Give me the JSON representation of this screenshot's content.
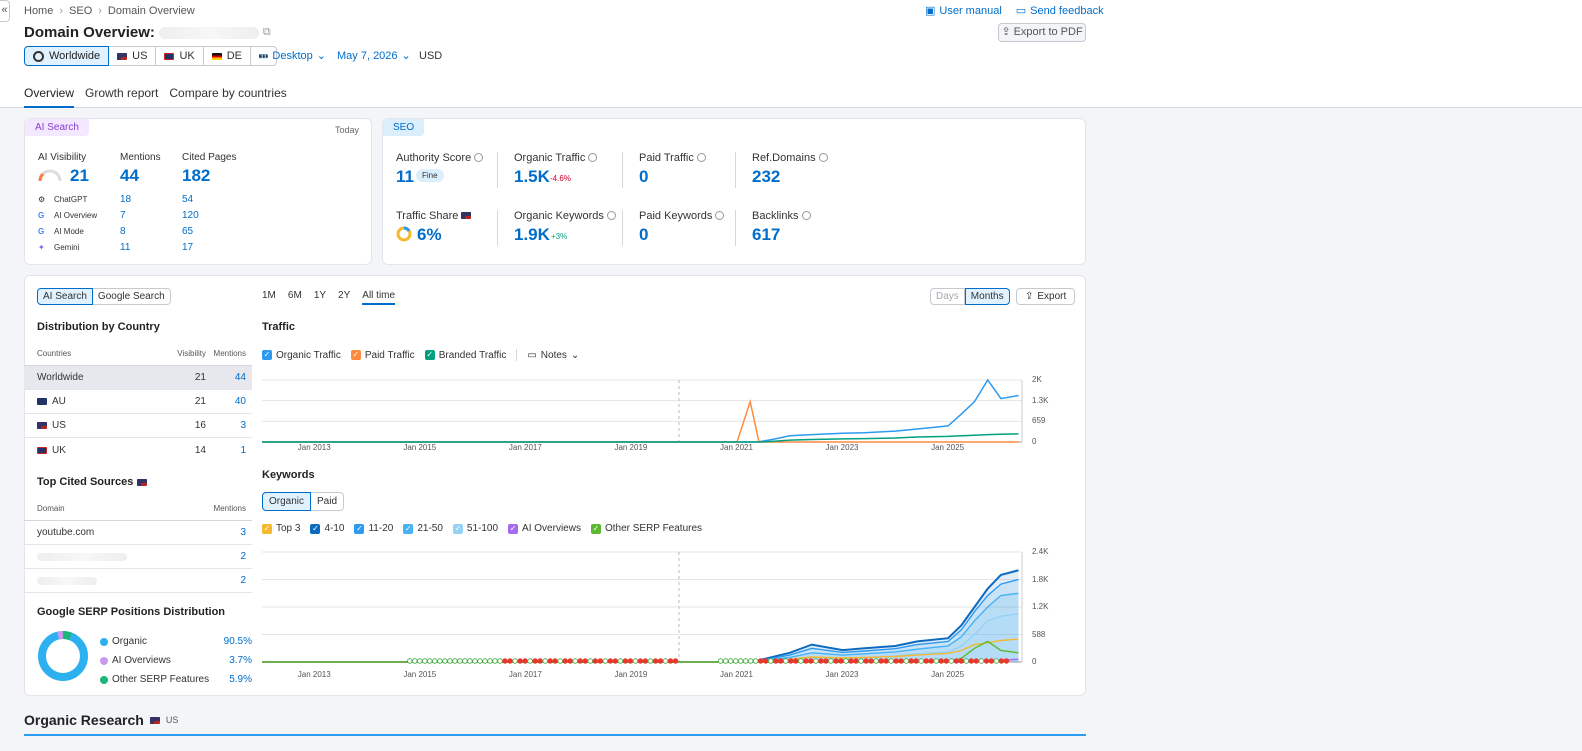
{
  "breadcrumbs": [
    "Home",
    "SEO",
    "Domain Overview"
  ],
  "page_title": "Domain Overview:",
  "top_links": {
    "manual": "User manual",
    "feedback": "Send feedback"
  },
  "export_pdf": "Export to PDF",
  "regions": [
    "Worldwide",
    "US",
    "UK",
    "DE"
  ],
  "more": "•••",
  "device": "Desktop",
  "date": "May 7, 2026",
  "currency": "USD",
  "tabs": [
    "Overview",
    "Growth report",
    "Compare by countries"
  ],
  "ai_card": {
    "badge": "AI Search",
    "when": "Today",
    "headers": [
      "AI Visibility",
      "Mentions",
      "Cited Pages"
    ],
    "visibility": "21",
    "mentions": "44",
    "cited": "182",
    "rows": [
      {
        "name": "ChatGPT",
        "m": "18",
        "c": "54"
      },
      {
        "name": "AI Overview",
        "m": "7",
        "c": "120"
      },
      {
        "name": "AI Mode",
        "m": "8",
        "c": "65"
      },
      {
        "name": "Gemini",
        "m": "11",
        "c": "17"
      }
    ]
  },
  "seo_card": {
    "badge": "SEO",
    "authority_label": "Authority Score",
    "authority": "11",
    "authority_badge": "Fine",
    "organic_traffic_label": "Organic Traffic",
    "organic_traffic": "1.5K",
    "organic_traffic_delta": "-4.6%",
    "paid_traffic_label": "Paid Traffic",
    "paid_traffic": "0",
    "refdomains_label": "Ref.Domains",
    "refdomains": "232",
    "share_label": "Traffic Share",
    "share": "6%",
    "organic_kw_label": "Organic Keywords",
    "organic_kw": "1.9K",
    "organic_kw_delta": "+3%",
    "paid_kw_label": "Paid Keywords",
    "paid_kw": "0",
    "backlinks_label": "Backlinks",
    "backlinks": "617"
  },
  "left_panel": {
    "toggle": [
      "AI Search",
      "Google Search"
    ],
    "dist_title": "Distribution by Country",
    "dist_headers": [
      "Countries",
      "Visibility",
      "Mentions"
    ],
    "dist_rows": [
      {
        "c": "Worldwide",
        "v": "21",
        "m": "44"
      },
      {
        "c": "AU",
        "v": "21",
        "m": "40"
      },
      {
        "c": "US",
        "v": "16",
        "m": "3"
      },
      {
        "c": "UK",
        "v": "14",
        "m": "1"
      }
    ],
    "sources_title": "Top Cited Sources",
    "sources_headers": [
      "Domain",
      "Mentions"
    ],
    "sources_rows": [
      {
        "d": "youtube.com",
        "m": "3"
      },
      {
        "d": "",
        "m": "2"
      },
      {
        "d": "",
        "m": "2"
      }
    ],
    "serp_title": "Google SERP Positions Distribution",
    "serp_rows": [
      {
        "name": "Organic",
        "v": "90.5%",
        "color": "#2cb0f0"
      },
      {
        "name": "AI Overviews",
        "v": "3.7%",
        "color": "#c79af0"
      },
      {
        "name": "Other SERP Features",
        "v": "5.9%",
        "color": "#1bb67a"
      }
    ]
  },
  "periods": [
    "1M",
    "6M",
    "1Y",
    "2Y",
    "All time"
  ],
  "granularity": [
    "Days",
    "Months"
  ],
  "export": "Export",
  "traffic": {
    "title": "Traffic",
    "legend": [
      {
        "name": "Organic Traffic",
        "color": "#2c9aef"
      },
      {
        "name": "Paid Traffic",
        "color": "#ff8a3d"
      },
      {
        "name": "Branded Traffic",
        "color": "#00a080"
      }
    ],
    "notes": "Notes",
    "y_ticks": [
      "2K",
      "1.3K",
      "659",
      "0"
    ],
    "x_ticks": [
      "Jan 2013",
      "Jan 2015",
      "Jan 2017",
      "Jan 2019",
      "Jan 2021",
      "Jan 2023",
      "Jan 2025"
    ]
  },
  "keywords": {
    "title": "Keywords",
    "toggle": [
      "Organic",
      "Paid"
    ],
    "legend": [
      {
        "name": "Top 3",
        "color": "#f5b82e"
      },
      {
        "name": "4-10",
        "color": "#0d6ac1"
      },
      {
        "name": "11-20",
        "color": "#2c9aef"
      },
      {
        "name": "21-50",
        "color": "#45b3f5"
      },
      {
        "name": "51-100",
        "color": "#94d2f7"
      },
      {
        "name": "AI Overviews",
        "color": "#a66cf0"
      },
      {
        "name": "Other SERP Features",
        "color": "#5ab82e"
      }
    ],
    "y_ticks": [
      "2.4K",
      "1.8K",
      "1.2K",
      "588",
      "0"
    ],
    "x_ticks": [
      "Jan 2013",
      "Jan 2015",
      "Jan 2017",
      "Jan 2019",
      "Jan 2021",
      "Jan 2023",
      "Jan 2025"
    ]
  },
  "bottom": {
    "title": "Organic Research",
    "region": "US"
  },
  "chart_data": [
    {
      "type": "line",
      "title": "Traffic",
      "x": [
        "2012-01",
        "2013-01",
        "2014-01",
        "2015-01",
        "2016-01",
        "2017-01",
        "2018-01",
        "2019-01",
        "2020-01",
        "2021-01",
        "2021-04",
        "2021-06",
        "2021-09",
        "2022-01",
        "2022-06",
        "2023-01",
        "2023-06",
        "2024-01",
        "2024-06",
        "2025-01",
        "2025-04",
        "2025-07",
        "2025-10",
        "2026-01",
        "2026-05"
      ],
      "series": [
        {
          "name": "Organic Traffic",
          "values": [
            0,
            0,
            0,
            0,
            0,
            0,
            0,
            0,
            0,
            0,
            0,
            10,
            80,
            200,
            240,
            280,
            300,
            350,
            420,
            520,
            900,
            1300,
            2000,
            1400,
            1500
          ]
        },
        {
          "name": "Paid Traffic",
          "values": [
            0,
            0,
            0,
            0,
            0,
            0,
            0,
            0,
            0,
            0,
            1300,
            0,
            0,
            0,
            0,
            0,
            0,
            0,
            0,
            0,
            0,
            0,
            0,
            0,
            0
          ]
        },
        {
          "name": "Branded Traffic",
          "values": [
            0,
            0,
            0,
            0,
            0,
            0,
            0,
            0,
            0,
            0,
            0,
            0,
            20,
            60,
            80,
            100,
            110,
            130,
            160,
            180,
            200,
            220,
            240,
            250,
            260
          ]
        }
      ],
      "ylim": [
        0,
        2000
      ]
    },
    {
      "type": "area",
      "title": "Keywords",
      "x": [
        "2012-01",
        "2013-01",
        "2014-01",
        "2015-01",
        "2016-01",
        "2017-01",
        "2018-01",
        "2019-01",
        "2020-01",
        "2021-01",
        "2021-06",
        "2022-01",
        "2022-06",
        "2023-01",
        "2023-06",
        "2024-01",
        "2024-06",
        "2025-01",
        "2025-04",
        "2025-07",
        "2025-10",
        "2026-01",
        "2026-05"
      ],
      "series": [
        {
          "name": "Top 3",
          "values": [
            0,
            0,
            0,
            0,
            0,
            0,
            0,
            0,
            0,
            0,
            10,
            60,
            110,
            90,
            100,
            120,
            150,
            190,
            250,
            380,
            420,
            470,
            500
          ]
        },
        {
          "name": "4-10",
          "values": [
            0,
            0,
            0,
            0,
            0,
            0,
            0,
            0,
            0,
            0,
            40,
            200,
            380,
            260,
            300,
            350,
            450,
            520,
            800,
            1200,
            1600,
            1900,
            2000
          ]
        },
        {
          "name": "11-20",
          "values": [
            0,
            0,
            0,
            0,
            0,
            0,
            0,
            0,
            0,
            0,
            30,
            150,
            300,
            210,
            240,
            290,
            380,
            450,
            700,
            1100,
            1450,
            1700,
            1800
          ]
        },
        {
          "name": "21-50",
          "values": [
            0,
            0,
            0,
            0,
            0,
            0,
            0,
            0,
            0,
            0,
            20,
            100,
            200,
            150,
            180,
            220,
            280,
            350,
            550,
            900,
            1200,
            1450,
            1500
          ]
        },
        {
          "name": "51-100",
          "values": [
            0,
            0,
            0,
            0,
            0,
            0,
            0,
            0,
            0,
            0,
            10,
            50,
            100,
            80,
            100,
            130,
            180,
            220,
            350,
            600,
            900,
            1000,
            1050
          ]
        },
        {
          "name": "AI Overviews",
          "values": [
            0,
            0,
            0,
            0,
            0,
            0,
            0,
            0,
            0,
            0,
            0,
            0,
            0,
            0,
            0,
            0,
            0,
            0,
            0,
            0,
            20,
            40,
            60
          ]
        },
        {
          "name": "Other SERP Features",
          "values": [
            0,
            0,
            0,
            0,
            0,
            0,
            0,
            0,
            0,
            0,
            0,
            0,
            0,
            0,
            0,
            0,
            0,
            0,
            80,
            300,
            450,
            250,
            200
          ]
        }
      ],
      "ylim": [
        0,
        2400
      ]
    }
  ]
}
